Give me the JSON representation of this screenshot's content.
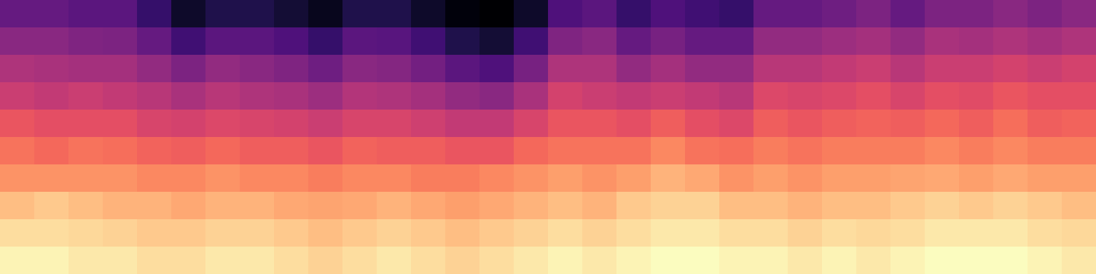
{
  "chart_data": {
    "type": "heatmap",
    "color": "magma",
    "tick_labels": false,
    "cells": [
      [
        30,
        30,
        28,
        28,
        20,
        10,
        15,
        15,
        12,
        8,
        15,
        15,
        10,
        5,
        3,
        10,
        25,
        28,
        20,
        25,
        22,
        20,
        30,
        30,
        32,
        35,
        30,
        35,
        35,
        38,
        35,
        38
      ],
      [
        38,
        38,
        36,
        35,
        30,
        22,
        28,
        28,
        25,
        20,
        28,
        27,
        22,
        15,
        12,
        22,
        36,
        38,
        30,
        34,
        30,
        30,
        40,
        40,
        42,
        44,
        40,
        45,
        44,
        46,
        44,
        46
      ],
      [
        46,
        45,
        44,
        44,
        40,
        35,
        40,
        38,
        36,
        32,
        38,
        37,
        33,
        28,
        25,
        34,
        46,
        46,
        40,
        44,
        40,
        40,
        48,
        48,
        50,
        52,
        48,
        52,
        52,
        54,
        52,
        54
      ],
      [
        52,
        50,
        52,
        50,
        48,
        45,
        48,
        46,
        45,
        42,
        47,
        46,
        44,
        40,
        38,
        45,
        54,
        52,
        50,
        52,
        50,
        48,
        56,
        55,
        56,
        58,
        55,
        58,
        57,
        60,
        58,
        58
      ],
      [
        60,
        58,
        58,
        58,
        55,
        54,
        56,
        55,
        54,
        52,
        55,
        55,
        53,
        50,
        50,
        55,
        60,
        60,
        58,
        62,
        58,
        56,
        62,
        60,
        62,
        63,
        62,
        64,
        62,
        65,
        62,
        63
      ],
      [
        66,
        64,
        66,
        65,
        63,
        62,
        64,
        62,
        62,
        60,
        63,
        62,
        62,
        60,
        60,
        64,
        66,
        66,
        66,
        70,
        66,
        65,
        68,
        66,
        68,
        68,
        68,
        70,
        68,
        70,
        68,
        68
      ],
      [
        72,
        72,
        72,
        72,
        70,
        70,
        72,
        70,
        70,
        68,
        70,
        70,
        68,
        68,
        70,
        72,
        74,
        72,
        74,
        78,
        76,
        72,
        74,
        72,
        74,
        74,
        75,
        76,
        74,
        76,
        74,
        74
      ],
      [
        80,
        82,
        80,
        78,
        78,
        76,
        78,
        78,
        76,
        75,
        76,
        78,
        76,
        74,
        76,
        78,
        80,
        78,
        82,
        84,
        84,
        80,
        80,
        78,
        80,
        80,
        82,
        84,
        82,
        84,
        82,
        80
      ],
      [
        86,
        86,
        85,
        84,
        82,
        82,
        84,
        84,
        82,
        80,
        82,
        84,
        82,
        80,
        82,
        84,
        86,
        84,
        86,
        88,
        88,
        86,
        86,
        84,
        86,
        85,
        86,
        88,
        88,
        88,
        86,
        85
      ],
      [
        90,
        90,
        88,
        88,
        86,
        86,
        88,
        88,
        86,
        84,
        86,
        88,
        86,
        84,
        86,
        88,
        90,
        88,
        90,
        92,
        92,
        90,
        90,
        88,
        90,
        88,
        90,
        92,
        92,
        92,
        90,
        88
      ]
    ]
  }
}
